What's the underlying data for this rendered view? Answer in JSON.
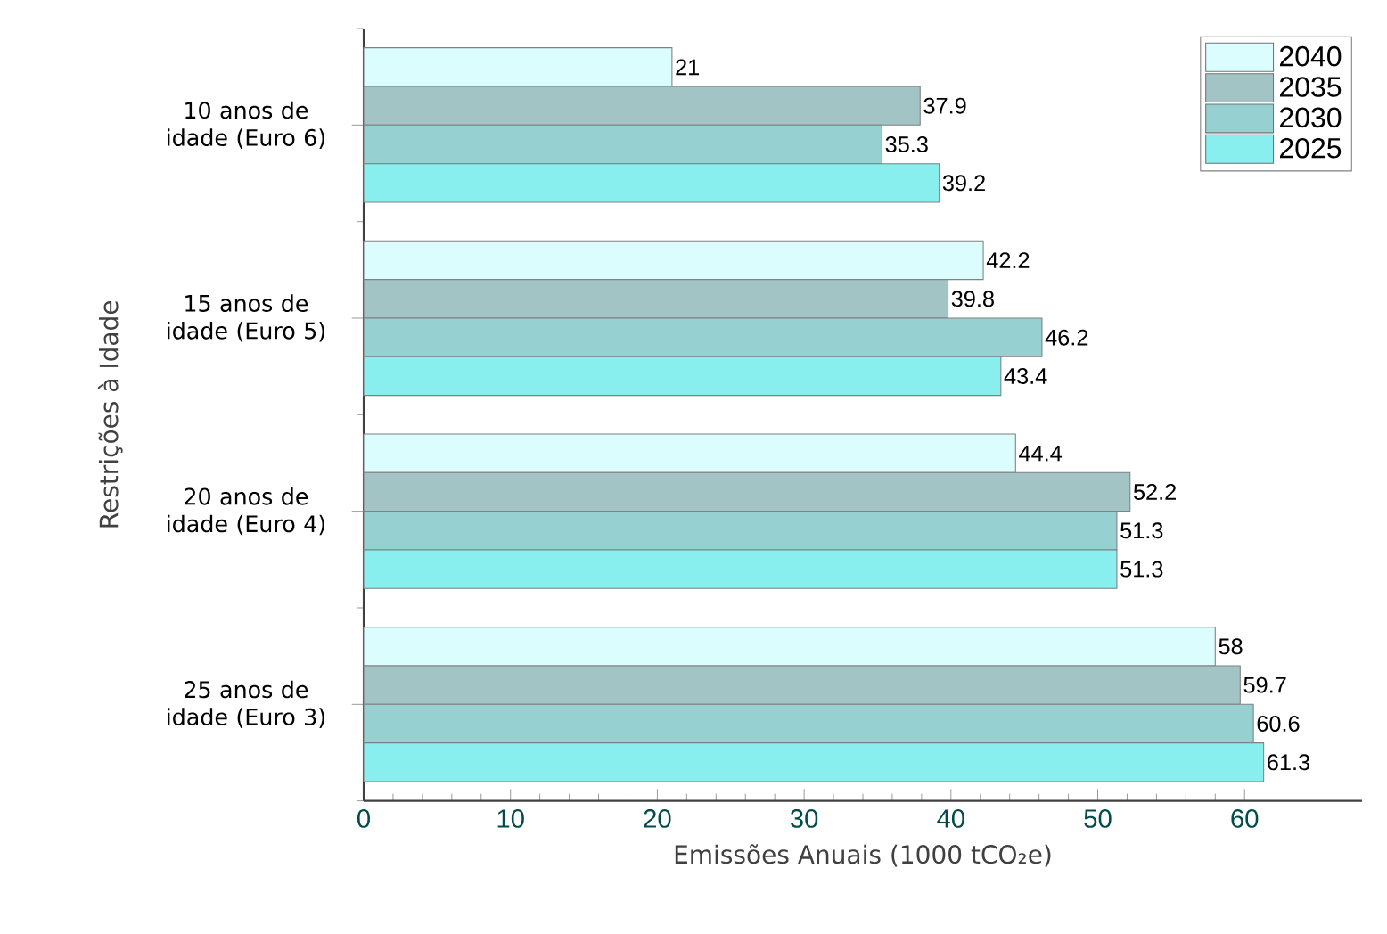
{
  "chart_data": {
    "type": "bar",
    "orientation": "horizontal",
    "xlabel": "Emissões Anuais (1000 tCO₂e)",
    "ylabel": "Restrições à Idade",
    "categories": [
      "10 anos de idade (Euro 6)",
      "15 anos de idade (Euro 5)",
      "20 anos de idade (Euro 4)",
      "25 anos de idade (Euro 3)"
    ],
    "series": [
      {
        "name": "2040",
        "color": "#dcfdfd",
        "values": [
          21,
          42.2,
          44.4,
          58
        ]
      },
      {
        "name": "2035",
        "color": "#a3c4c4",
        "values": [
          37.9,
          39.8,
          52.2,
          59.7
        ]
      },
      {
        "name": "2030",
        "color": "#96d0d0",
        "values": [
          35.3,
          46.2,
          51.3,
          60.6
        ]
      },
      {
        "name": "2025",
        "color": "#88eeee",
        "values": [
          39.2,
          43.4,
          51.3,
          61.3
        ]
      }
    ],
    "xlim": [
      0,
      68
    ],
    "xticks": [
      0,
      10,
      20,
      30,
      40,
      50,
      60
    ],
    "data_labels": true,
    "legend": "top right",
    "grid": false
  }
}
